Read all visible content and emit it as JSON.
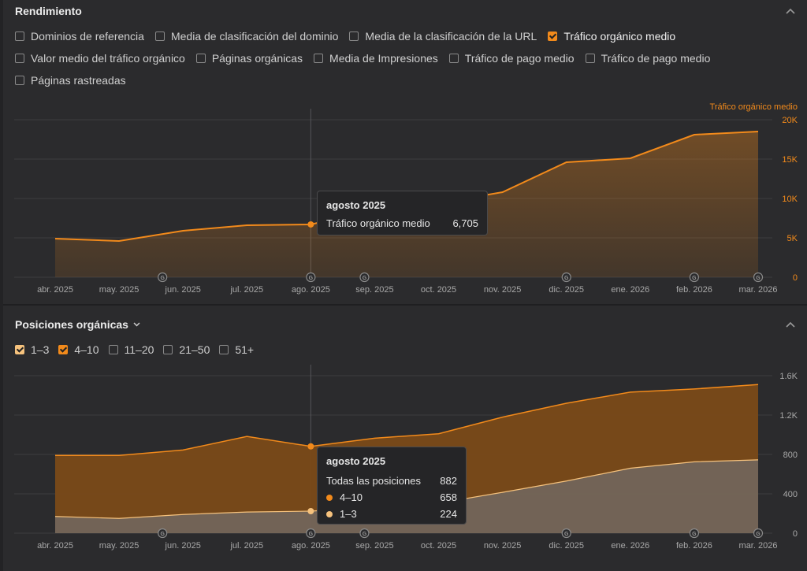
{
  "performance": {
    "title": "Rendimiento",
    "checkboxes": [
      {
        "label": "Dominios de referencia",
        "checked": false
      },
      {
        "label": "Media de clasificación del dominio",
        "checked": false
      },
      {
        "label": "Media de la clasificación de la URL",
        "checked": false
      },
      {
        "label": "Tráfico orgánico medio",
        "checked": true
      },
      {
        "label": "Valor medio del tráfico orgánico",
        "checked": false
      },
      {
        "label": "Páginas orgánicas",
        "checked": false
      },
      {
        "label": "Media de Impresiones",
        "checked": false
      },
      {
        "label": "Tráfico de pago medio",
        "checked": false
      },
      {
        "label": "Tráfico de pago medio",
        "checked": false
      },
      {
        "label": "Páginas rastreadas",
        "checked": false
      }
    ],
    "axis_caption": "Tráfico orgánico medio",
    "tooltip": {
      "title": "agosto 2025",
      "label": "Tráfico orgánico medio",
      "value": "6,705"
    }
  },
  "positions": {
    "title": "Posiciones orgánicas",
    "checkboxes": [
      {
        "label": "1–3",
        "checked": true,
        "shade": "light"
      },
      {
        "label": "4–10",
        "checked": true,
        "shade": "dark"
      },
      {
        "label": "11–20",
        "checked": false
      },
      {
        "label": "21–50",
        "checked": false
      },
      {
        "label": "51+",
        "checked": false
      }
    ],
    "tooltip": {
      "title": "agosto 2025",
      "total_label": "Todas las posiciones",
      "total_value": "882",
      "rows": [
        {
          "label": "4–10",
          "value": "658",
          "color": "#f28a1b"
        },
        {
          "label": "1–3",
          "value": "224",
          "color": "#f6c27d"
        }
      ]
    }
  },
  "colors": {
    "accent": "#f28a1b",
    "accent_light": "#f6c27d",
    "grid": "#3d3d40",
    "axis_text": "#a8a8a8"
  },
  "chart_data": [
    {
      "type": "area",
      "title": "Rendimiento",
      "x": [
        "abr. 2025",
        "may. 2025",
        "jun. 2025",
        "jul. 2025",
        "ago. 2025",
        "sep. 2025",
        "oct. 2025",
        "nov. 2025",
        "dic. 2025",
        "ene. 2026",
        "feb. 2026",
        "mar. 2026"
      ],
      "series": [
        {
          "name": "Tráfico orgánico medio",
          "values": [
            4900,
            4600,
            5900,
            6600,
            6705,
            8600,
            9400,
            10800,
            14600,
            15100,
            18100,
            18500
          ]
        }
      ],
      "yticks": [
        0,
        5000,
        10000,
        15000,
        20000
      ],
      "ytick_labels": [
        "0",
        "5K",
        "10K",
        "15K",
        "20K"
      ],
      "ylim": [
        0,
        20000
      ],
      "highlight_index": 4,
      "google_update_markers": [
        "jun. 2025",
        "ago. 2025",
        "sep. 2025",
        "dic. 2025",
        "feb. 2026",
        "mar. 2026"
      ],
      "grid": true
    },
    {
      "type": "area",
      "title": "Posiciones orgánicas",
      "x": [
        "abr. 2025",
        "may. 2025",
        "jun. 2025",
        "jul. 2025",
        "ago. 2025",
        "sep. 2025",
        "oct. 2025",
        "nov. 2025",
        "dic. 2025",
        "ene. 2026",
        "feb. 2026",
        "mar. 2026"
      ],
      "stacked": true,
      "series": [
        {
          "name": "1–3",
          "values": [
            170,
            150,
            190,
            215,
            224,
            265,
            305,
            415,
            530,
            660,
            725,
            745
          ]
        },
        {
          "name": "4–10",
          "values": [
            620,
            640,
            655,
            768,
            658,
            700,
            705,
            764,
            790,
            773,
            740,
            765
          ]
        }
      ],
      "totals": [
        790,
        790,
        845,
        983,
        882,
        965,
        1010,
        1179,
        1320,
        1433,
        1465,
        1510
      ],
      "yticks": [
        0,
        400,
        800,
        1200,
        1600
      ],
      "ytick_labels": [
        "0",
        "400",
        "800",
        "1.2K",
        "1.6K"
      ],
      "ylim": [
        0,
        1600
      ],
      "highlight_index": 4,
      "google_update_markers": [
        "jun. 2025",
        "ago. 2025",
        "sep. 2025",
        "dic. 2025",
        "feb. 2026",
        "mar. 2026"
      ],
      "grid": true
    }
  ]
}
